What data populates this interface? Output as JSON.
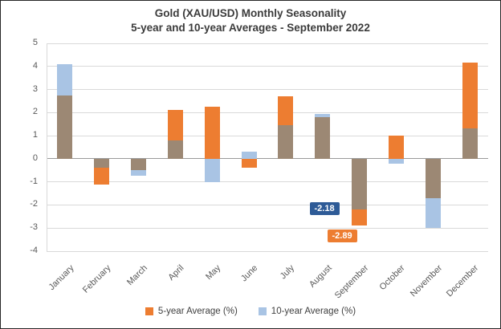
{
  "chart": {
    "title_line1": "Gold (XAU/USD) Monthly Seasonality",
    "title_line2": "5-year and 10-year Averages - September 2022"
  },
  "chart_data": {
    "type": "bar",
    "mode": "overlapping",
    "title": "Gold (XAU/USD) Monthly Seasonality — 5-year and 10-year Averages - September 2022",
    "categories": [
      "January",
      "February",
      "March",
      "April",
      "May",
      "June",
      "July",
      "August",
      "September",
      "October",
      "November",
      "December"
    ],
    "series": [
      {
        "name": "5-year Average (%)",
        "color": "#ED7D31",
        "values": [
          2.75,
          -1.1,
          -0.5,
          2.1,
          2.25,
          -0.4,
          2.7,
          1.8,
          -2.89,
          1.0,
          -1.7,
          4.15
        ]
      },
      {
        "name": "10-year Average (%)",
        "color": "#A9C4E4",
        "values": [
          4.1,
          -0.4,
          -0.75,
          0.8,
          -1.0,
          0.3,
          1.45,
          1.95,
          -2.18,
          -0.2,
          -3.0,
          1.3
        ]
      }
    ],
    "overlap_color": "#9C8874",
    "ylim": [
      -4,
      5
    ],
    "ytick_step": 1,
    "grid": true,
    "legend_position": "bottom",
    "annotations": [
      {
        "label": "-2.18",
        "month": "September",
        "value": -2.18,
        "series": "10-year Average (%)",
        "bg": "#2E5B97",
        "placement": "left"
      },
      {
        "label": "-2.89",
        "month": "September",
        "value": -2.89,
        "series": "5-year Average (%)",
        "bg": "#ED7D31",
        "placement": "below"
      }
    ]
  }
}
